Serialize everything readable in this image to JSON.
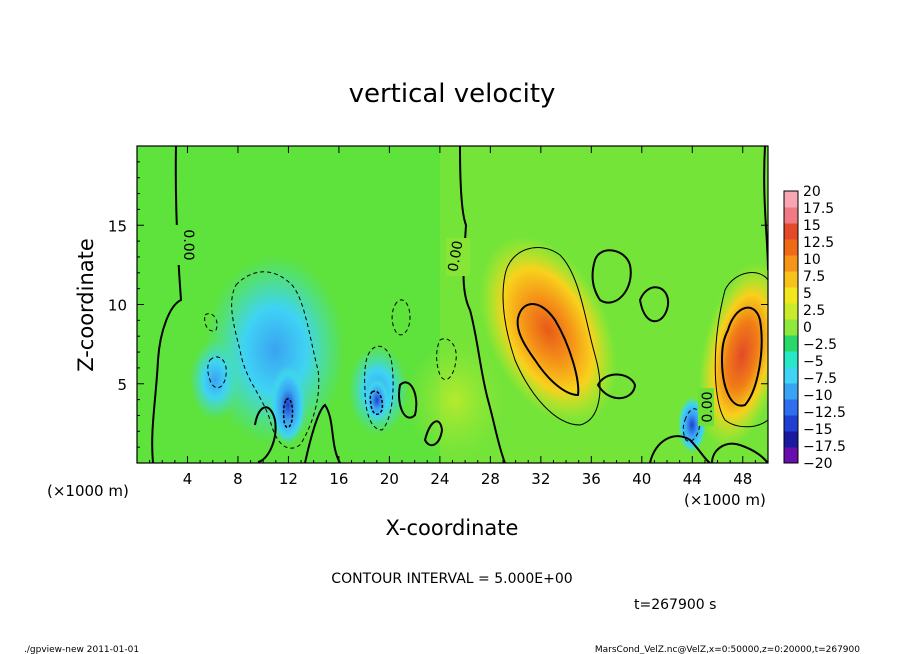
{
  "chart_data": {
    "type": "heatmap",
    "title": "vertical velocity",
    "xlabel": "X-coordinate",
    "ylabel": "Z-coordinate",
    "x_unit": "(×1000 m)",
    "y_unit": "(×1000 m)",
    "xlim": [
      0,
      50
    ],
    "ylim": [
      0,
      20
    ],
    "x_ticks": [
      "4",
      "8",
      "12",
      "16",
      "20",
      "24",
      "28",
      "32",
      "36",
      "40",
      "44",
      "48"
    ],
    "y_ticks": [
      "5",
      "10",
      "15"
    ],
    "contour_interval_text": "CONTOUR INTERVAL = 5.000E+00",
    "contour_labels": [
      "0.00",
      "0.00",
      "0.00"
    ],
    "time_text": "t=267900 s",
    "footer_left": "./gpview-new  2011-01-01",
    "footer_right": "MarsCond_VelZ.nc@VelZ,x=0:50000,z=0:20000,t=267900",
    "colorbar": {
      "levels": [
        -20,
        -17.5,
        -15,
        -12.5,
        -10,
        -7.5,
        -5,
        -2.5,
        0,
        2.5,
        5,
        7.5,
        10,
        12.5,
        15,
        17.5,
        20
      ],
      "labels": [
        "20",
        "17.5",
        "15",
        "12.5",
        "10",
        "7.5",
        "5",
        "2.5",
        "0",
        "−2.5",
        "−5",
        "−7.5",
        "−10",
        "−12.5",
        "−15",
        "−17.5",
        "−20"
      ],
      "colors": [
        "#6a0dad",
        "#1a1aa0",
        "#1f3fd0",
        "#2f6fef",
        "#3aa3f2",
        "#3fd3f4",
        "#28e8c8",
        "#2ad86a",
        "#8fe83a",
        "#c8ec2a",
        "#f2e61e",
        "#f8c21c",
        "#f59418",
        "#ee6a16",
        "#e34a28",
        "#f07a84",
        "#f8a6b4"
      ]
    },
    "features": [
      {
        "kind": "updraft",
        "x_center": 32.5,
        "z_center": 7.5,
        "peak": 12.5
      },
      {
        "kind": "updraft",
        "x_center": 48.0,
        "z_center": 7.0,
        "peak": 15.0
      },
      {
        "kind": "downdraft",
        "x_center": 12.0,
        "z_center": 6.0,
        "peak": -10.0
      },
      {
        "kind": "downdraft",
        "x_center": 19.0,
        "z_center": 4.0,
        "peak": -12.5
      },
      {
        "kind": "downdraft",
        "x_center": 43.5,
        "z_center": 2.0,
        "peak": -7.5
      }
    ]
  }
}
